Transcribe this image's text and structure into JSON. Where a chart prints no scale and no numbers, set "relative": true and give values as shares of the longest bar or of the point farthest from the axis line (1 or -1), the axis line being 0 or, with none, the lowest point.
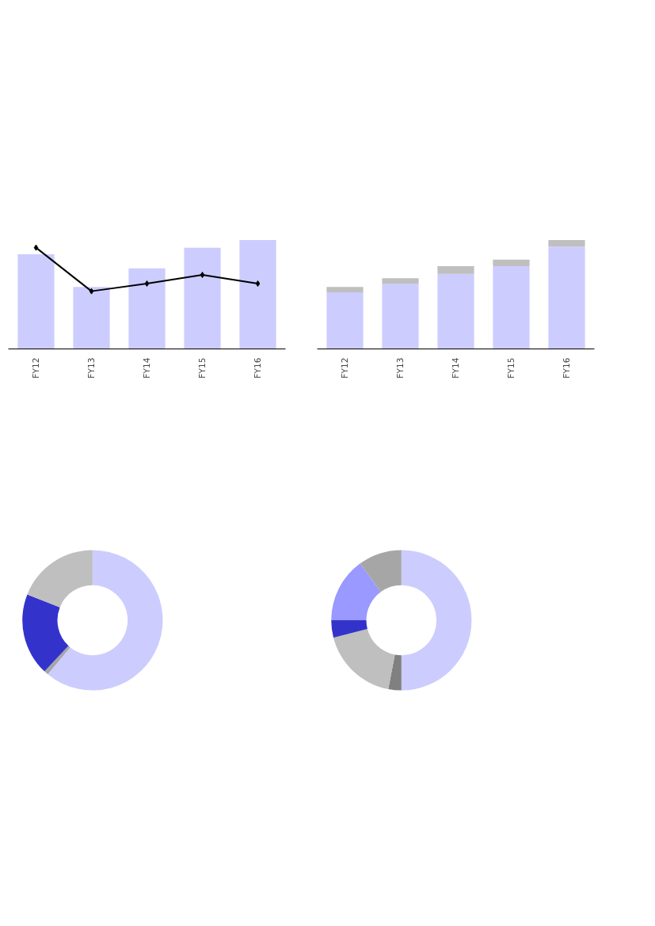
{
  "chart_data": [
    {
      "type": "bar",
      "relative": true,
      "categories": [
        "FY12",
        "FY13",
        "FY14",
        "FY15",
        "FY16"
      ],
      "grid": false,
      "series": [
        {
          "color": "#ccccff",
          "values": [
            0.87,
            0.57,
            0.74,
            0.93,
            1.0
          ]
        },
        {
          "type": "line",
          "color": "#000000",
          "marker": "diamond",
          "values": [
            0.93,
            0.53,
            0.6,
            0.68,
            0.6
          ]
        }
      ]
    },
    {
      "type": "bar",
      "relative": true,
      "stacked": true,
      "categories": [
        "FY12",
        "FY13",
        "FY14",
        "FY15",
        "FY16"
      ],
      "grid": false,
      "series": [
        {
          "color": "#ccccff",
          "values": [
            0.52,
            0.6,
            0.69,
            0.76,
            0.94
          ]
        },
        {
          "color": "#bfbfbf",
          "values": [
            0.05,
            0.05,
            0.07,
            0.06,
            0.06
          ]
        }
      ]
    },
    {
      "type": "donut",
      "categories": [
        null,
        null,
        null,
        null
      ],
      "values": [
        61,
        1,
        19,
        19
      ],
      "colors": [
        "#ccccff",
        "#a6a6a6",
        "#3333cc",
        "#bfbfbf"
      ]
    },
    {
      "type": "donut",
      "categories": [
        null,
        null,
        null,
        null,
        null,
        null
      ],
      "values": [
        50,
        3,
        18,
        4,
        15,
        10
      ],
      "colors": [
        "#ccccff",
        "#808080",
        "#bfbfbf",
        "#3333cc",
        "#9999ff",
        "#a6a6a6"
      ]
    }
  ]
}
